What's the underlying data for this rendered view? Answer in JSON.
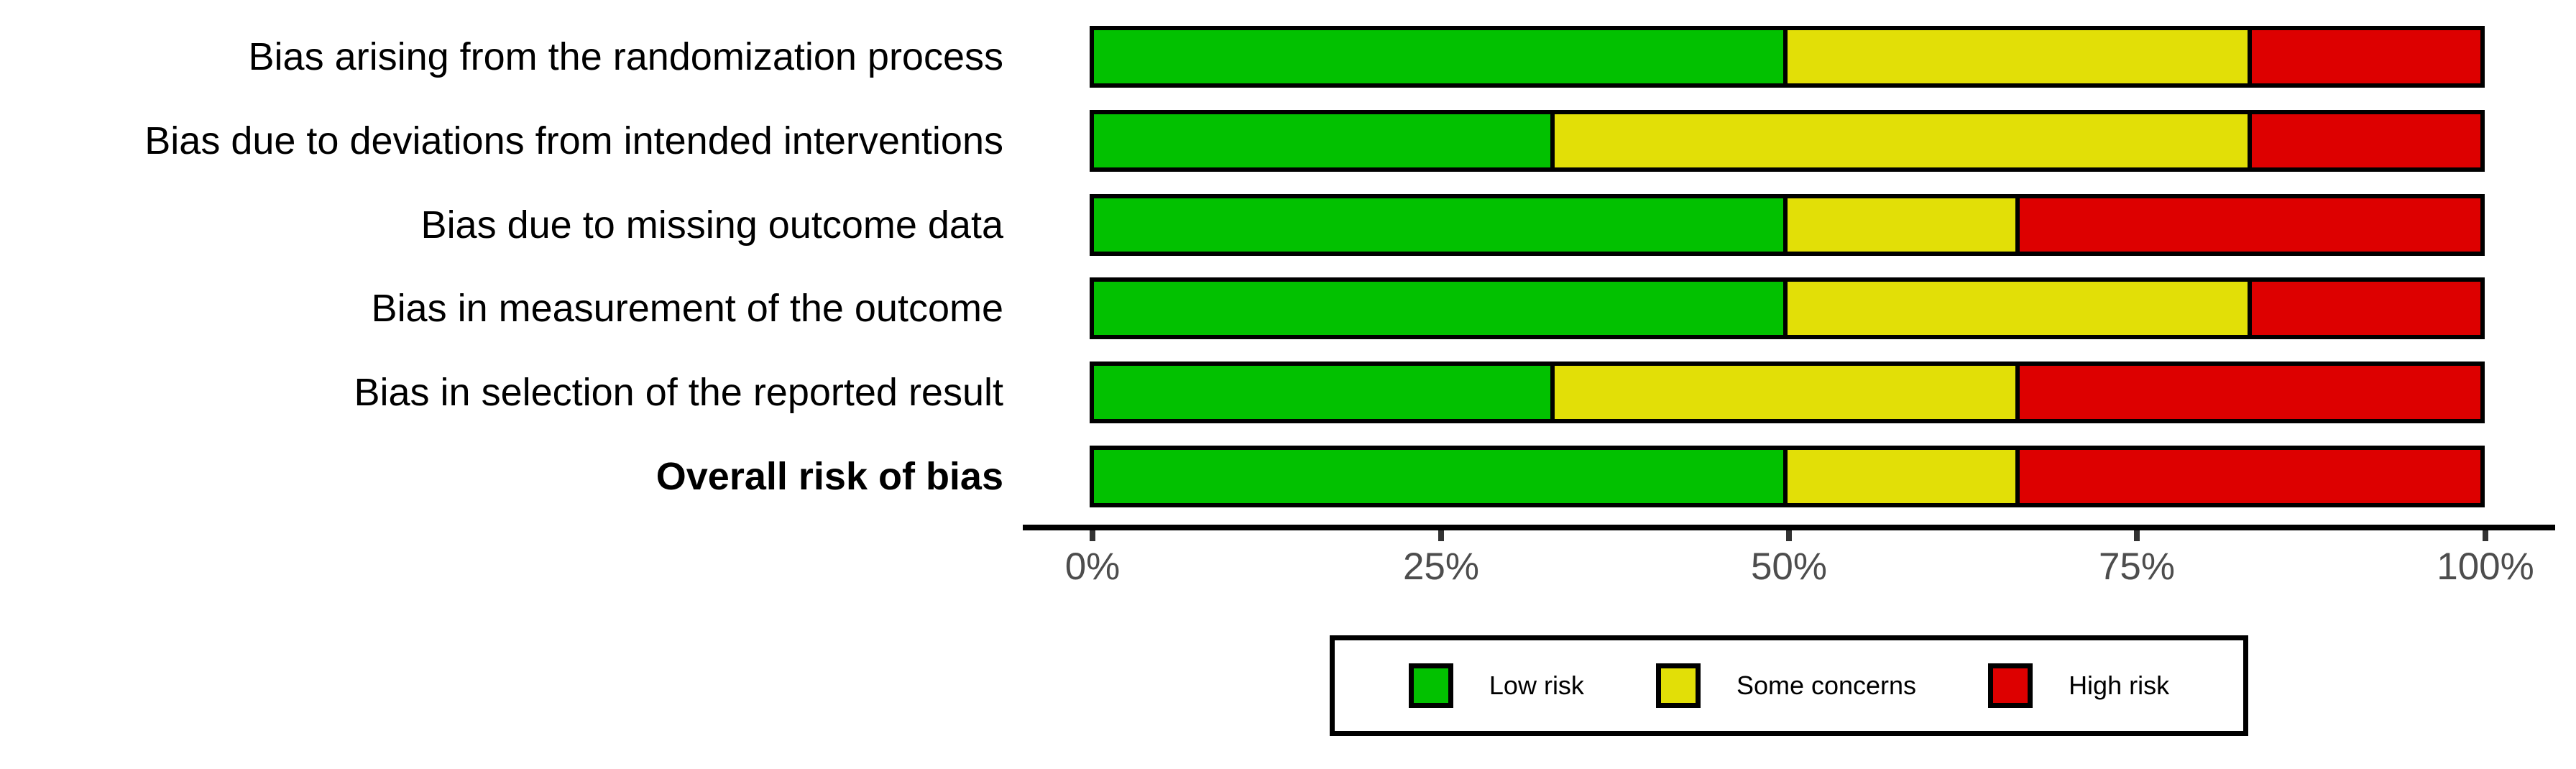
{
  "chart_data": {
    "type": "bar",
    "subtype": "horizontal-stacked-percent",
    "title": "",
    "xlabel": "",
    "ylabel": "",
    "x_axis": {
      "range": [
        0,
        100
      ],
      "tick_labels": [
        "0%",
        "25%",
        "50%",
        "75%",
        "100%"
      ],
      "tick_values": [
        0,
        25,
        50,
        75,
        100
      ],
      "grid": false
    },
    "categories": [
      "Bias arising from the randomization process",
      "Bias due to deviations from intended interventions",
      "Bias due to missing outcome data",
      "Bias in measurement of the outcome",
      "Bias in selection of the reported result",
      "Overall risk of bias"
    ],
    "series": [
      {
        "name": "Low risk",
        "color": "#02C100",
        "values": [
          50,
          33.33,
          50,
          50,
          33.33,
          50
        ]
      },
      {
        "name": "Some concerns",
        "color": "#E2DF07",
        "values": [
          33.33,
          50,
          16.67,
          33.33,
          33.33,
          16.67
        ]
      },
      {
        "name": "High risk",
        "color": "#DD0000",
        "values": [
          16.67,
          16.67,
          33.33,
          16.67,
          33.34,
          33.33
        ]
      }
    ],
    "legend": {
      "position": "bottom",
      "border_color": "#000000",
      "items": [
        "Low risk",
        "Some concerns",
        "High risk"
      ]
    },
    "bar_border_color": "#000000",
    "axis_line_color": "#000000",
    "tick_label_color": "#4d4d4d"
  }
}
